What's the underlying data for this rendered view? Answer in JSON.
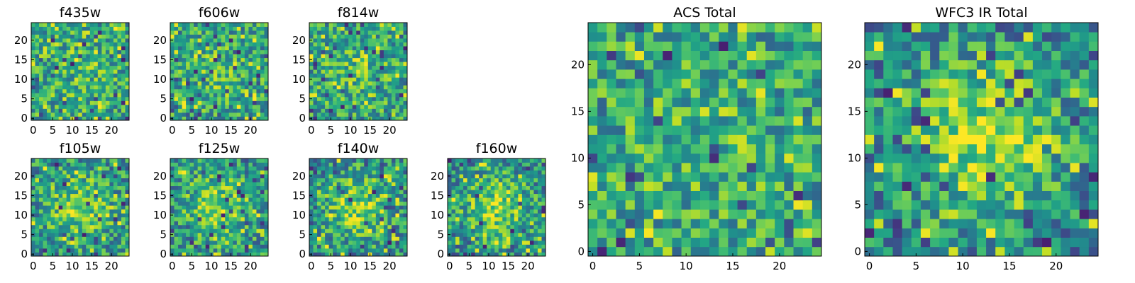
{
  "figure": {
    "width": 1600,
    "height": 400
  },
  "chart_data": [
    {
      "type": "heatmap",
      "title": "f435w",
      "grid_size": 25,
      "xlim": [
        0,
        24
      ],
      "ylim": [
        0,
        24
      ],
      "xticks": [
        0,
        5,
        10,
        15,
        20
      ],
      "yticks": [
        0,
        5,
        10,
        15,
        20
      ],
      "colormap": "viridis",
      "values": "noise",
      "seed": 11,
      "center_boost": 0.05
    },
    {
      "type": "heatmap",
      "title": "f606w",
      "grid_size": 25,
      "xlim": [
        0,
        24
      ],
      "ylim": [
        0,
        24
      ],
      "xticks": [
        0,
        5,
        10,
        15,
        20
      ],
      "yticks": [
        0,
        5,
        10,
        15,
        20
      ],
      "colormap": "viridis",
      "values": "noise",
      "seed": 23,
      "center_boost": 0.08
    },
    {
      "type": "heatmap",
      "title": "f814w",
      "grid_size": 25,
      "xlim": [
        0,
        24
      ],
      "ylim": [
        0,
        24
      ],
      "xticks": [
        0,
        5,
        10,
        15,
        20
      ],
      "yticks": [
        0,
        5,
        10,
        15,
        20
      ],
      "colormap": "viridis",
      "values": "noise",
      "seed": 37,
      "center_boost": 0.08
    },
    {
      "type": "heatmap",
      "title": "f105w",
      "grid_size": 25,
      "xlim": [
        0,
        24
      ],
      "ylim": [
        0,
        24
      ],
      "xticks": [
        0,
        5,
        10,
        15,
        20
      ],
      "yticks": [
        0,
        5,
        10,
        15,
        20
      ],
      "colormap": "viridis",
      "values": "noise",
      "seed": 41,
      "center_boost": 0.18
    },
    {
      "type": "heatmap",
      "title": "f125w",
      "grid_size": 25,
      "xlim": [
        0,
        24
      ],
      "ylim": [
        0,
        24
      ],
      "xticks": [
        0,
        5,
        10,
        15,
        20
      ],
      "yticks": [
        0,
        5,
        10,
        15,
        20
      ],
      "colormap": "viridis",
      "values": "noise",
      "seed": 53,
      "center_boost": 0.18
    },
    {
      "type": "heatmap",
      "title": "f140w",
      "grid_size": 25,
      "xlim": [
        0,
        24
      ],
      "ylim": [
        0,
        24
      ],
      "xticks": [
        0,
        5,
        10,
        15,
        20
      ],
      "yticks": [
        0,
        5,
        10,
        15,
        20
      ],
      "colormap": "viridis",
      "values": "noise",
      "seed": 67,
      "center_boost": 0.22
    },
    {
      "type": "heatmap",
      "title": "f160w",
      "grid_size": 25,
      "xlim": [
        0,
        24
      ],
      "ylim": [
        0,
        24
      ],
      "xticks": [
        0,
        5,
        10,
        15,
        20
      ],
      "yticks": [
        0,
        5,
        10,
        15,
        20
      ],
      "colormap": "viridis",
      "values": "noise",
      "seed": 79,
      "center_boost": 0.22
    },
    {
      "type": "heatmap",
      "title": "ACS Total",
      "grid_size": 25,
      "xlim": [
        0,
        24
      ],
      "ylim": [
        0,
        24
      ],
      "xticks": [
        0,
        5,
        10,
        15,
        20
      ],
      "yticks": [
        0,
        5,
        10,
        15,
        20
      ],
      "colormap": "viridis",
      "values": "noise",
      "seed": 97,
      "center_boost": 0.06
    },
    {
      "type": "heatmap",
      "title": "WFC3 IR Total",
      "grid_size": 25,
      "xlim": [
        0,
        24
      ],
      "ylim": [
        0,
        24
      ],
      "xticks": [
        0,
        5,
        10,
        15,
        20
      ],
      "yticks": [
        0,
        5,
        10,
        15,
        20
      ],
      "colormap": "viridis",
      "values": "noise",
      "seed": 131,
      "center_boost": 0.28
    }
  ]
}
